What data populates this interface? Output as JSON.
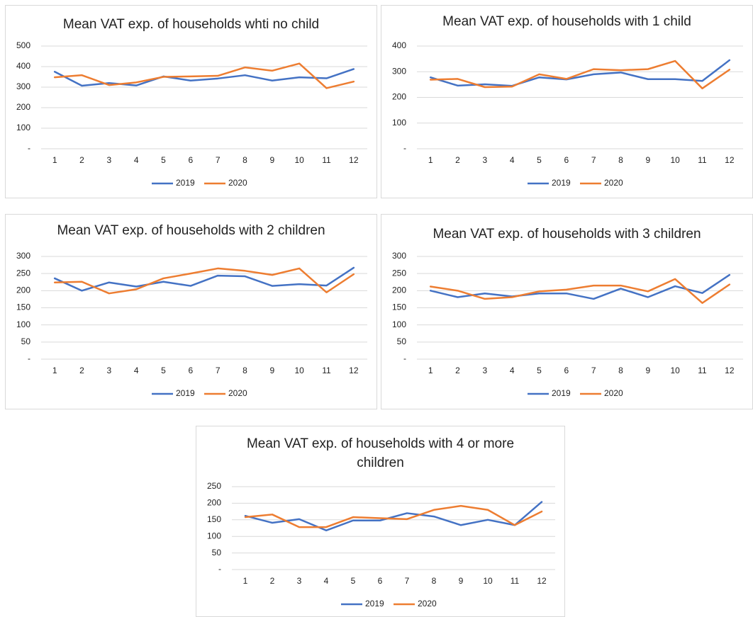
{
  "chart_data": [
    {
      "type": "line",
      "title": "Mean VAT exp. of households whti no child",
      "categories": [
        "1",
        "2",
        "3",
        "4",
        "5",
        "6",
        "7",
        "8",
        "9",
        "10",
        "11",
        "12"
      ],
      "series": [
        {
          "name": "2019",
          "color": "#4472c4",
          "values": [
            375,
            307,
            320,
            308,
            352,
            332,
            342,
            358,
            332,
            348,
            343,
            388
          ]
        },
        {
          "name": "2020",
          "color": "#ed7d31",
          "values": [
            348,
            358,
            310,
            323,
            350,
            352,
            355,
            396,
            380,
            415,
            295,
            327
          ]
        }
      ],
      "ylim": [
        0,
        500
      ],
      "yticks": [
        {
          "value": 0,
          "label": "-"
        },
        100,
        200,
        300,
        400,
        500
      ],
      "grid": true,
      "legend": "bottom"
    },
    {
      "type": "line",
      "title": "Mean VAT exp. of households with 1 child",
      "categories": [
        "1",
        "2",
        "3",
        "4",
        "5",
        "6",
        "7",
        "8",
        "9",
        "10",
        "11",
        "12"
      ],
      "series": [
        {
          "name": "2019",
          "color": "#4472c4",
          "values": [
            278,
            246,
            251,
            245,
            278,
            270,
            290,
            297,
            271,
            271,
            264,
            345
          ]
        },
        {
          "name": "2020",
          "color": "#ed7d31",
          "values": [
            269,
            272,
            240,
            242,
            290,
            272,
            310,
            306,
            310,
            342,
            235,
            308
          ]
        }
      ],
      "ylim": [
        0,
        400
      ],
      "yticks": [
        {
          "value": 0,
          "label": "-"
        },
        100,
        200,
        300,
        400
      ],
      "grid": true,
      "legend": "bottom"
    },
    {
      "type": "line",
      "title": "Mean VAT exp. of households with 2 children",
      "categories": [
        "1",
        "2",
        "3",
        "4",
        "5",
        "6",
        "7",
        "8",
        "9",
        "10",
        "11",
        "12"
      ],
      "series": [
        {
          "name": "2019",
          "color": "#4472c4",
          "values": [
            236,
            200,
            224,
            212,
            226,
            214,
            244,
            242,
            214,
            219,
            215,
            267
          ]
        },
        {
          "name": "2020",
          "color": "#ed7d31",
          "values": [
            224,
            226,
            192,
            204,
            236,
            250,
            265,
            258,
            246,
            265,
            195,
            248
          ]
        }
      ],
      "ylim": [
        0,
        300
      ],
      "yticks": [
        {
          "value": 0,
          "label": "-"
        },
        50,
        100,
        150,
        200,
        250,
        300
      ],
      "grid": true,
      "legend": "bottom"
    },
    {
      "type": "line",
      "title": "Mean VAT exp. of households with 3 children",
      "categories": [
        "1",
        "2",
        "3",
        "4",
        "5",
        "6",
        "7",
        "8",
        "9",
        "10",
        "11",
        "12"
      ],
      "series": [
        {
          "name": "2019",
          "color": "#4472c4",
          "values": [
            200,
            181,
            192,
            183,
            192,
            192,
            176,
            206,
            181,
            213,
            193,
            246
          ]
        },
        {
          "name": "2020",
          "color": "#ed7d31",
          "values": [
            212,
            200,
            176,
            181,
            198,
            203,
            215,
            215,
            198,
            234,
            164,
            218
          ]
        }
      ],
      "ylim": [
        0,
        300
      ],
      "yticks": [
        {
          "value": 0,
          "label": "-"
        },
        50,
        100,
        150,
        200,
        250,
        300
      ],
      "grid": true,
      "legend": "bottom"
    },
    {
      "type": "line",
      "title": "Mean VAT exp. of households with 4 or more children",
      "categories": [
        "1",
        "2",
        "3",
        "4",
        "5",
        "6",
        "7",
        "8",
        "9",
        "10",
        "11",
        "12"
      ],
      "series": [
        {
          "name": "2019",
          "color": "#4472c4",
          "values": [
            162,
            141,
            152,
            118,
            148,
            148,
            170,
            160,
            134,
            150,
            134,
            204
          ]
        },
        {
          "name": "2020",
          "color": "#ed7d31",
          "values": [
            158,
            166,
            128,
            128,
            158,
            155,
            152,
            180,
            192,
            180,
            134,
            175
          ]
        }
      ],
      "ylim": [
        0,
        250
      ],
      "yticks": [
        {
          "value": 0,
          "label": "-"
        },
        50,
        100,
        150,
        200,
        250
      ],
      "grid": true,
      "legend": "bottom"
    }
  ]
}
